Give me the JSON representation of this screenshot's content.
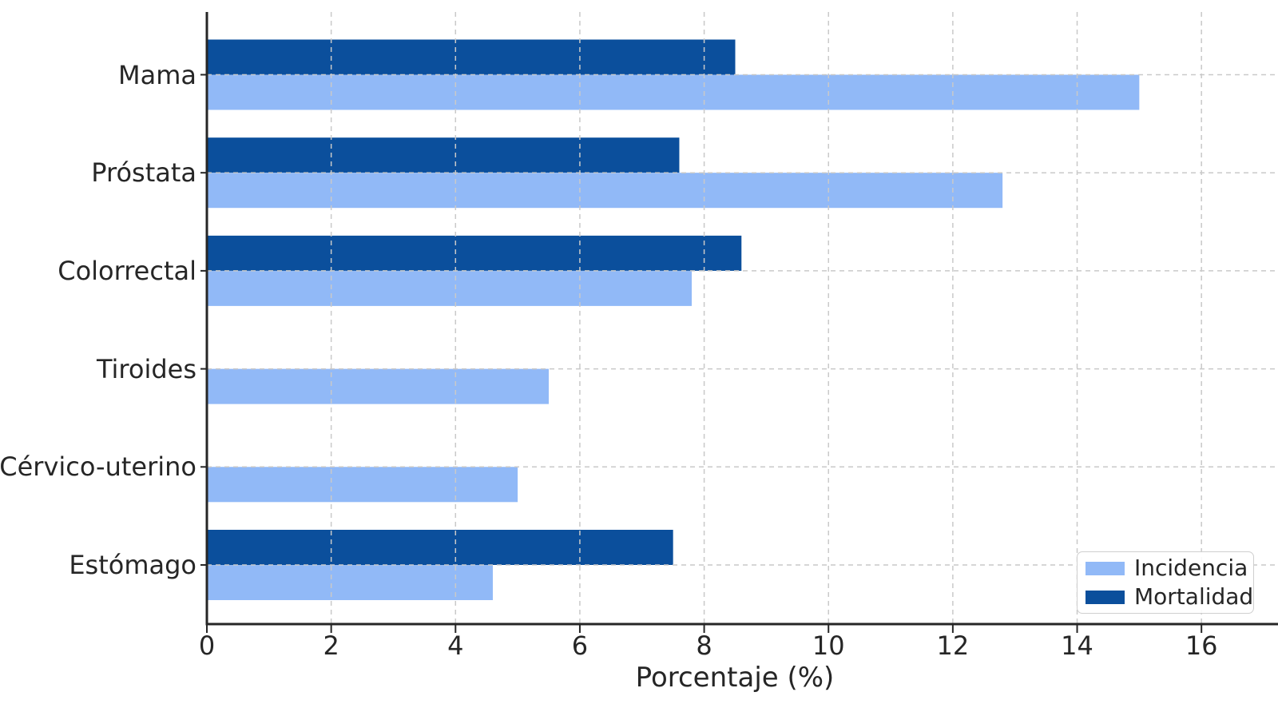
{
  "chart_data": {
    "type": "bar",
    "orientation": "horizontal",
    "title": "",
    "xlabel": "Porcentaje (%)",
    "ylabel": "",
    "categories": [
      "Mama",
      "Próstata",
      "Colorrectal",
      "Tiroides",
      "Cérvico-uterino",
      "Estómago"
    ],
    "series": [
      {
        "name": "Incidencia",
        "color": "#91b9f7",
        "values": [
          15.0,
          12.8,
          7.8,
          5.5,
          5.0,
          4.6
        ]
      },
      {
        "name": "Mortalidad",
        "color": "#0b4f9c",
        "values": [
          8.5,
          7.6,
          8.6,
          null,
          null,
          7.5
        ]
      }
    ],
    "xlim": [
      0,
      17
    ],
    "xticks": [
      0,
      2,
      4,
      6,
      8,
      10,
      12,
      14,
      16
    ],
    "grid": true,
    "grid_style": "dashed",
    "grid_color": "#c9c9c9",
    "spine_color": "#262626",
    "legend_position": "lower right"
  }
}
